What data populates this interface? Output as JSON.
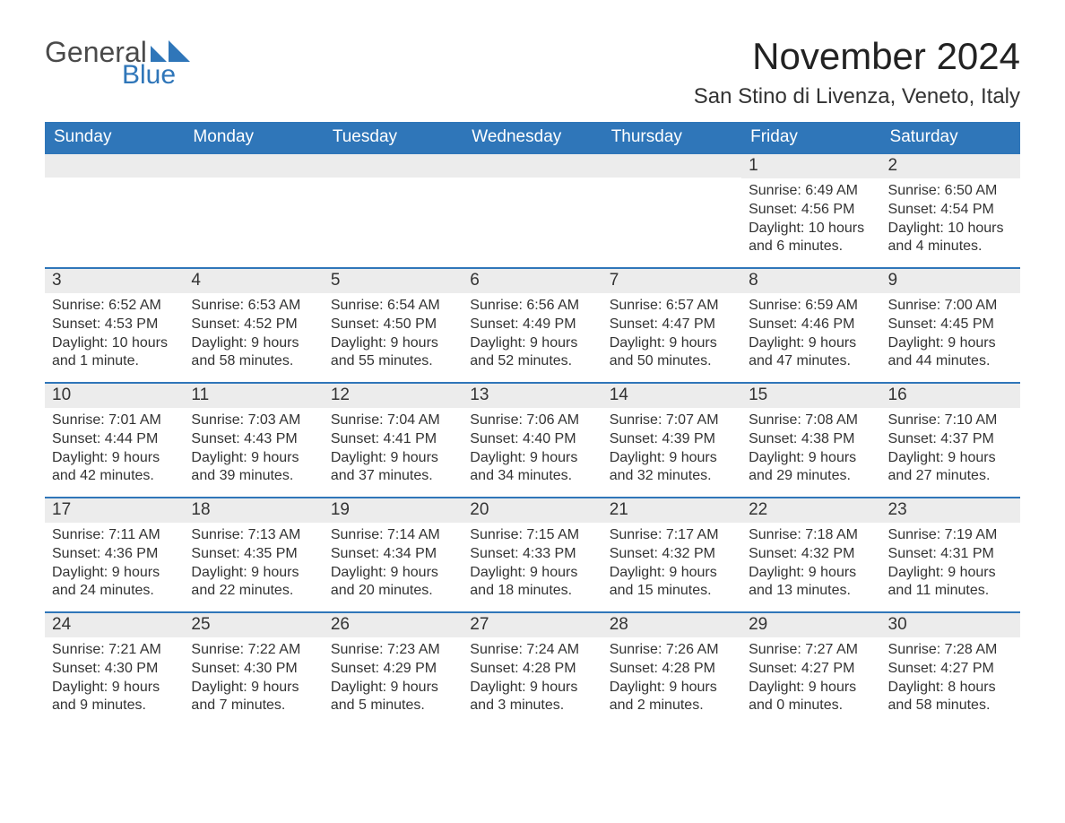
{
  "brand": {
    "line1": "General",
    "line2": "Blue",
    "logo_color": "#2f76b9",
    "text_color": "#4a4a4a"
  },
  "title": "November 2024",
  "location": "San Stino di Livenza, Veneto, Italy",
  "style": {
    "header_bg": "#2f76b9",
    "header_fg": "#ffffff",
    "row_divider": "#2f76b9",
    "daybar_bg": "#ececec",
    "text_color": "#333333",
    "background": "#ffffff",
    "title_fontsize": 42,
    "location_fontsize": 24,
    "weekday_fontsize": 19,
    "daynum_fontsize": 19,
    "body_fontsize": 16
  },
  "weekdays": [
    "Sunday",
    "Monday",
    "Tuesday",
    "Wednesday",
    "Thursday",
    "Friday",
    "Saturday"
  ],
  "weeks": [
    [
      {
        "day": null
      },
      {
        "day": null
      },
      {
        "day": null
      },
      {
        "day": null
      },
      {
        "day": null
      },
      {
        "day": "1",
        "sunrise": "Sunrise: 6:49 AM",
        "sunset": "Sunset: 4:56 PM",
        "daylight1": "Daylight: 10 hours",
        "daylight2": "and 6 minutes."
      },
      {
        "day": "2",
        "sunrise": "Sunrise: 6:50 AM",
        "sunset": "Sunset: 4:54 PM",
        "daylight1": "Daylight: 10 hours",
        "daylight2": "and 4 minutes."
      }
    ],
    [
      {
        "day": "3",
        "sunrise": "Sunrise: 6:52 AM",
        "sunset": "Sunset: 4:53 PM",
        "daylight1": "Daylight: 10 hours",
        "daylight2": "and 1 minute."
      },
      {
        "day": "4",
        "sunrise": "Sunrise: 6:53 AM",
        "sunset": "Sunset: 4:52 PM",
        "daylight1": "Daylight: 9 hours",
        "daylight2": "and 58 minutes."
      },
      {
        "day": "5",
        "sunrise": "Sunrise: 6:54 AM",
        "sunset": "Sunset: 4:50 PM",
        "daylight1": "Daylight: 9 hours",
        "daylight2": "and 55 minutes."
      },
      {
        "day": "6",
        "sunrise": "Sunrise: 6:56 AM",
        "sunset": "Sunset: 4:49 PM",
        "daylight1": "Daylight: 9 hours",
        "daylight2": "and 52 minutes."
      },
      {
        "day": "7",
        "sunrise": "Sunrise: 6:57 AM",
        "sunset": "Sunset: 4:47 PM",
        "daylight1": "Daylight: 9 hours",
        "daylight2": "and 50 minutes."
      },
      {
        "day": "8",
        "sunrise": "Sunrise: 6:59 AM",
        "sunset": "Sunset: 4:46 PM",
        "daylight1": "Daylight: 9 hours",
        "daylight2": "and 47 minutes."
      },
      {
        "day": "9",
        "sunrise": "Sunrise: 7:00 AM",
        "sunset": "Sunset: 4:45 PM",
        "daylight1": "Daylight: 9 hours",
        "daylight2": "and 44 minutes."
      }
    ],
    [
      {
        "day": "10",
        "sunrise": "Sunrise: 7:01 AM",
        "sunset": "Sunset: 4:44 PM",
        "daylight1": "Daylight: 9 hours",
        "daylight2": "and 42 minutes."
      },
      {
        "day": "11",
        "sunrise": "Sunrise: 7:03 AM",
        "sunset": "Sunset: 4:43 PM",
        "daylight1": "Daylight: 9 hours",
        "daylight2": "and 39 minutes."
      },
      {
        "day": "12",
        "sunrise": "Sunrise: 7:04 AM",
        "sunset": "Sunset: 4:41 PM",
        "daylight1": "Daylight: 9 hours",
        "daylight2": "and 37 minutes."
      },
      {
        "day": "13",
        "sunrise": "Sunrise: 7:06 AM",
        "sunset": "Sunset: 4:40 PM",
        "daylight1": "Daylight: 9 hours",
        "daylight2": "and 34 minutes."
      },
      {
        "day": "14",
        "sunrise": "Sunrise: 7:07 AM",
        "sunset": "Sunset: 4:39 PM",
        "daylight1": "Daylight: 9 hours",
        "daylight2": "and 32 minutes."
      },
      {
        "day": "15",
        "sunrise": "Sunrise: 7:08 AM",
        "sunset": "Sunset: 4:38 PM",
        "daylight1": "Daylight: 9 hours",
        "daylight2": "and 29 minutes."
      },
      {
        "day": "16",
        "sunrise": "Sunrise: 7:10 AM",
        "sunset": "Sunset: 4:37 PM",
        "daylight1": "Daylight: 9 hours",
        "daylight2": "and 27 minutes."
      }
    ],
    [
      {
        "day": "17",
        "sunrise": "Sunrise: 7:11 AM",
        "sunset": "Sunset: 4:36 PM",
        "daylight1": "Daylight: 9 hours",
        "daylight2": "and 24 minutes."
      },
      {
        "day": "18",
        "sunrise": "Sunrise: 7:13 AM",
        "sunset": "Sunset: 4:35 PM",
        "daylight1": "Daylight: 9 hours",
        "daylight2": "and 22 minutes."
      },
      {
        "day": "19",
        "sunrise": "Sunrise: 7:14 AM",
        "sunset": "Sunset: 4:34 PM",
        "daylight1": "Daylight: 9 hours",
        "daylight2": "and 20 minutes."
      },
      {
        "day": "20",
        "sunrise": "Sunrise: 7:15 AM",
        "sunset": "Sunset: 4:33 PM",
        "daylight1": "Daylight: 9 hours",
        "daylight2": "and 18 minutes."
      },
      {
        "day": "21",
        "sunrise": "Sunrise: 7:17 AM",
        "sunset": "Sunset: 4:32 PM",
        "daylight1": "Daylight: 9 hours",
        "daylight2": "and 15 minutes."
      },
      {
        "day": "22",
        "sunrise": "Sunrise: 7:18 AM",
        "sunset": "Sunset: 4:32 PM",
        "daylight1": "Daylight: 9 hours",
        "daylight2": "and 13 minutes."
      },
      {
        "day": "23",
        "sunrise": "Sunrise: 7:19 AM",
        "sunset": "Sunset: 4:31 PM",
        "daylight1": "Daylight: 9 hours",
        "daylight2": "and 11 minutes."
      }
    ],
    [
      {
        "day": "24",
        "sunrise": "Sunrise: 7:21 AM",
        "sunset": "Sunset: 4:30 PM",
        "daylight1": "Daylight: 9 hours",
        "daylight2": "and 9 minutes."
      },
      {
        "day": "25",
        "sunrise": "Sunrise: 7:22 AM",
        "sunset": "Sunset: 4:30 PM",
        "daylight1": "Daylight: 9 hours",
        "daylight2": "and 7 minutes."
      },
      {
        "day": "26",
        "sunrise": "Sunrise: 7:23 AM",
        "sunset": "Sunset: 4:29 PM",
        "daylight1": "Daylight: 9 hours",
        "daylight2": "and 5 minutes."
      },
      {
        "day": "27",
        "sunrise": "Sunrise: 7:24 AM",
        "sunset": "Sunset: 4:28 PM",
        "daylight1": "Daylight: 9 hours",
        "daylight2": "and 3 minutes."
      },
      {
        "day": "28",
        "sunrise": "Sunrise: 7:26 AM",
        "sunset": "Sunset: 4:28 PM",
        "daylight1": "Daylight: 9 hours",
        "daylight2": "and 2 minutes."
      },
      {
        "day": "29",
        "sunrise": "Sunrise: 7:27 AM",
        "sunset": "Sunset: 4:27 PM",
        "daylight1": "Daylight: 9 hours",
        "daylight2": "and 0 minutes."
      },
      {
        "day": "30",
        "sunrise": "Sunrise: 7:28 AM",
        "sunset": "Sunset: 4:27 PM",
        "daylight1": "Daylight: 8 hours",
        "daylight2": "and 58 minutes."
      }
    ]
  ]
}
